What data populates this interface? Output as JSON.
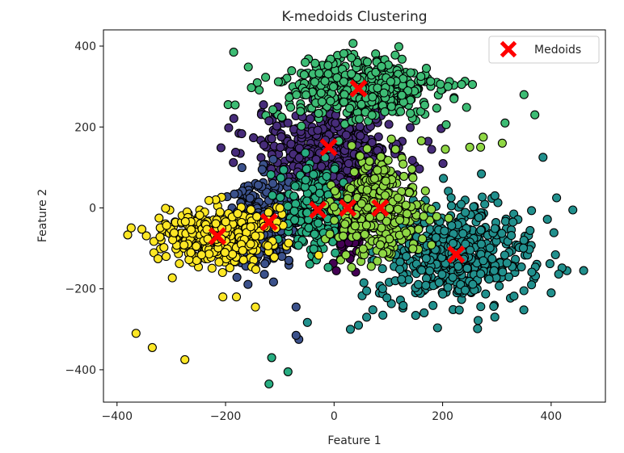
{
  "chart_data": {
    "type": "scatter",
    "title": "K-medoids Clustering",
    "xlabel": "Feature 1",
    "ylabel": "Feature 2",
    "xlim": [
      -425,
      500
    ],
    "ylim": [
      -480,
      440
    ],
    "xticks": [
      -400,
      -200,
      0,
      200,
      400
    ],
    "yticks": [
      -400,
      -200,
      0,
      200,
      400
    ],
    "xtick_labels": [
      "−400",
      "−200",
      "0",
      "200",
      "400"
    ],
    "ytick_labels": [
      "−400",
      "−200",
      "0",
      "200",
      "400"
    ],
    "grid": false,
    "legend": {
      "position": "top-right",
      "label": "Medoids"
    },
    "clusters": [
      {
        "name": "cluster-0",
        "color": "#440154",
        "center": [
          25,
          0
        ],
        "spread": [
          18,
          60
        ],
        "n": 260
      },
      {
        "name": "cluster-1",
        "color": "#472c7a",
        "center": [
          -5,
          150
        ],
        "spread": [
          70,
          45
        ],
        "n": 420
      },
      {
        "name": "cluster-2",
        "color": "#3b518b",
        "center": [
          -125,
          -35
        ],
        "spread": [
          35,
          55
        ],
        "n": 300
      },
      {
        "name": "cluster-3",
        "color": "#21908d",
        "center": [
          225,
          -115
        ],
        "spread": [
          70,
          60
        ],
        "n": 520
      },
      {
        "name": "cluster-4",
        "color": "#27ad81",
        "center": [
          -35,
          -5
        ],
        "spread": [
          30,
          55
        ],
        "n": 220
      },
      {
        "name": "cluster-5",
        "color": "#3dbc74",
        "center": [
          45,
          295
        ],
        "spread": [
          75,
          40
        ],
        "n": 460
      },
      {
        "name": "cluster-6",
        "color": "#8fd744",
        "center": [
          85,
          0
        ],
        "spread": [
          40,
          60
        ],
        "n": 320
      },
      {
        "name": "cluster-7",
        "color": "#fde725",
        "center": [
          -215,
          -70
        ],
        "spread": [
          50,
          35
        ],
        "n": 420
      }
    ],
    "outliers": [
      {
        "x": -365,
        "y": -310,
        "cluster": 7
      },
      {
        "x": -335,
        "y": -345,
        "cluster": 7
      },
      {
        "x": -275,
        "y": -375,
        "cluster": 7
      },
      {
        "x": -205,
        "y": -220,
        "cluster": 7
      },
      {
        "x": -180,
        "y": -220,
        "cluster": 7
      },
      {
        "x": -145,
        "y": -245,
        "cluster": 7
      },
      {
        "x": -120,
        "y": -435,
        "cluster": 4
      },
      {
        "x": -115,
        "y": -370,
        "cluster": 4
      },
      {
        "x": -85,
        "y": -405,
        "cluster": 4
      },
      {
        "x": -65,
        "y": -325,
        "cluster": 2
      },
      {
        "x": -70,
        "y": -245,
        "cluster": 2
      },
      {
        "x": -70,
        "y": -315,
        "cluster": 2
      },
      {
        "x": 30,
        "y": -300,
        "cluster": 3
      },
      {
        "x": 45,
        "y": -290,
        "cluster": 3
      },
      {
        "x": 60,
        "y": -270,
        "cluster": 3
      },
      {
        "x": 90,
        "y": -265,
        "cluster": 3
      },
      {
        "x": 60,
        "y": -205,
        "cluster": 3
      },
      {
        "x": 55,
        "y": -185,
        "cluster": 3
      },
      {
        "x": 400,
        "y": -210,
        "cluster": 3
      },
      {
        "x": 460,
        "y": -155,
        "cluster": 3
      },
      {
        "x": 440,
        "y": -5,
        "cluster": 3
      },
      {
        "x": 410,
        "y": 25,
        "cluster": 3
      },
      {
        "x": 385,
        "y": 125,
        "cluster": 3
      },
      {
        "x": -185,
        "y": 385,
        "cluster": 5
      },
      {
        "x": -130,
        "y": 255,
        "cluster": 1
      },
      {
        "x": -120,
        "y": 215,
        "cluster": 1
      },
      {
        "x": -85,
        "y": 210,
        "cluster": 1
      },
      {
        "x": 350,
        "y": 280,
        "cluster": 5
      },
      {
        "x": 370,
        "y": 230,
        "cluster": 5
      },
      {
        "x": 315,
        "y": 210,
        "cluster": 5
      },
      {
        "x": 310,
        "y": 160,
        "cluster": 6
      },
      {
        "x": 255,
        "y": 305,
        "cluster": 5
      },
      {
        "x": 235,
        "y": 305,
        "cluster": 5
      },
      {
        "x": 210,
        "y": 300,
        "cluster": 5
      },
      {
        "x": 170,
        "y": 345,
        "cluster": 5
      },
      {
        "x": 160,
        "y": 325,
        "cluster": 5
      },
      {
        "x": 250,
        "y": 150,
        "cluster": 6
      },
      {
        "x": 275,
        "y": 175,
        "cluster": 6
      },
      {
        "x": 270,
        "y": 150,
        "cluster": 6
      },
      {
        "x": 205,
        "y": 145,
        "cluster": 6
      }
    ],
    "medoids": [
      {
        "x": 45,
        "y": 295
      },
      {
        "x": -10,
        "y": 150
      },
      {
        "x": -120,
        "y": -35
      },
      {
        "x": -30,
        "y": -5
      },
      {
        "x": 25,
        "y": 0
      },
      {
        "x": 85,
        "y": 0
      },
      {
        "x": -215,
        "y": -70
      },
      {
        "x": 225,
        "y": -115
      }
    ],
    "medoid_color": "#ff0000"
  }
}
